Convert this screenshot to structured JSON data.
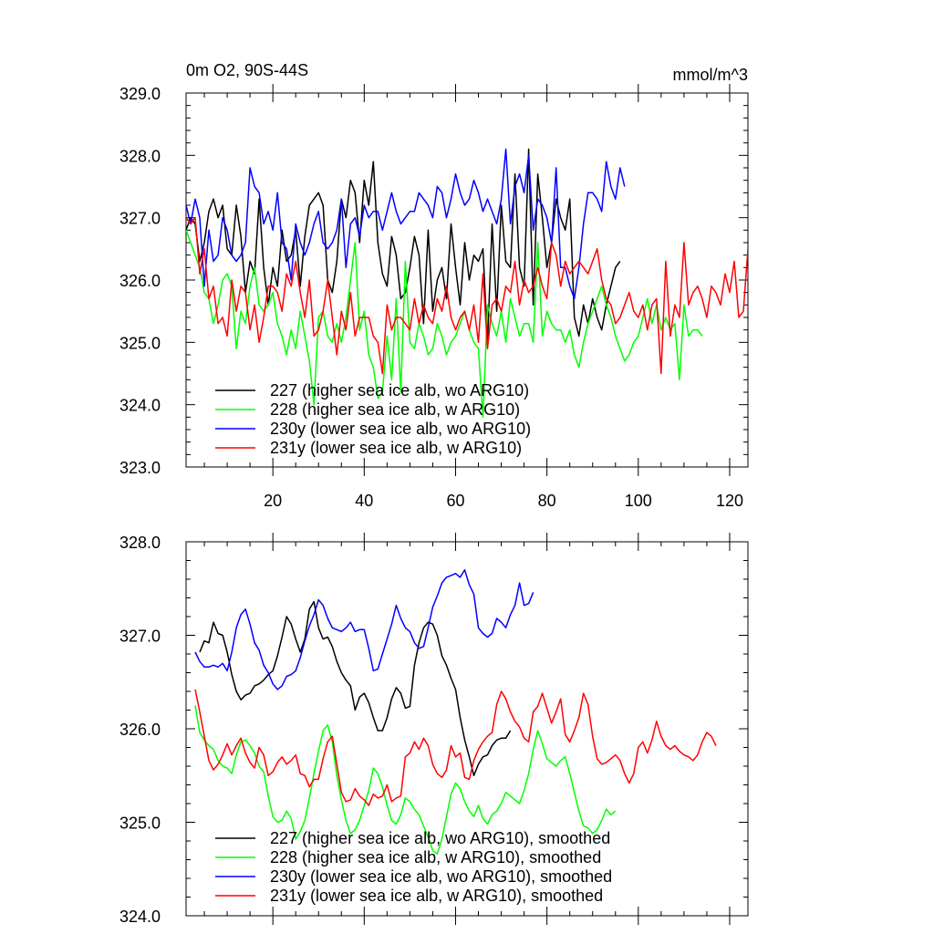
{
  "chart_data": [
    {
      "type": "line",
      "title": "0m O2, 90S-44S",
      "units": "mmol/m^3",
      "xlabel": "",
      "ylabel": "",
      "xlim": [
        1,
        124
      ],
      "ylim": [
        323.0,
        329.0
      ],
      "x_ticks": [
        20,
        40,
        60,
        80,
        100,
        120
      ],
      "x_tick_labels": [
        "20",
        "40",
        "60",
        "80",
        "100",
        "120"
      ],
      "y_ticks": [
        323.0,
        324.0,
        325.0,
        326.0,
        327.0,
        328.0,
        329.0
      ],
      "y_tick_labels": [
        "323.0",
        "324.0",
        "325.0",
        "326.0",
        "327.0",
        "328.0",
        "329.0"
      ],
      "legend_position": "bottom-left",
      "series": [
        {
          "name": "227 (higher sea ice alb, wo ARG10)",
          "color": "#000000",
          "x_start": 1,
          "values": [
            326.8,
            327.0,
            326.9,
            326.3,
            326.6,
            327.1,
            327.3,
            327.0,
            327.2,
            326.5,
            326.4,
            327.2,
            326.7,
            325.8,
            326.3,
            326.1,
            327.3,
            326.2,
            325.6,
            326.2,
            325.9,
            326.8,
            326.3,
            326.4,
            326.8,
            325.9,
            326.7,
            327.2,
            327.3,
            327.4,
            327.2,
            326.0,
            325.8,
            326.3,
            327.3,
            327.0,
            327.6,
            327.4,
            326.6,
            327.6,
            327.2,
            327.9,
            326.6,
            326.1,
            325.9,
            326.7,
            326.4,
            325.7,
            325.8,
            326.2,
            326.7,
            326.4,
            325.3,
            326.8,
            325.5,
            326.0,
            326.2,
            325.7,
            326.9,
            326.2,
            325.6,
            326.6,
            326.0,
            326.4,
            326.3,
            326.5,
            325.0,
            326.9,
            325.5,
            327.2,
            326.3,
            326.2,
            327.7,
            326.2,
            325.9,
            328.1,
            325.6,
            327.7,
            327.0,
            326.2,
            326.6,
            327.3,
            327.0,
            326.8,
            327.3,
            325.4,
            325.1,
            325.6,
            325.3,
            325.7,
            325.4,
            325.2,
            325.6,
            325.9,
            326.2,
            326.3
          ]
        },
        {
          "name": "228 (higher sea ice alb, w ARG10)",
          "color": "#00ff00",
          "x_start": 1,
          "values": [
            326.8,
            326.6,
            326.4,
            326.2,
            325.8,
            325.7,
            325.3,
            325.6,
            326.0,
            326.1,
            325.9,
            324.9,
            325.5,
            325.3,
            325.9,
            326.2,
            325.6,
            325.5,
            325.6,
            325.8,
            325.3,
            325.1,
            324.8,
            325.2,
            324.9,
            325.5,
            325.1,
            324.7,
            324.0,
            325.4,
            325.5,
            325.1,
            325.0,
            325.3,
            325.0,
            325.4,
            326.0,
            326.6,
            325.2,
            325.5,
            324.8,
            324.6,
            324.1,
            324.2,
            325.1,
            324.4,
            325.7,
            324.2,
            326.3,
            325.0,
            324.9,
            325.3,
            325.1,
            324.8,
            324.9,
            325.3,
            325.1,
            324.8,
            325.0,
            325.1,
            325.3,
            325.5,
            325.2,
            325.0,
            324.9,
            323.8,
            325.6,
            325.3,
            325.1,
            325.5,
            325.0,
            325.7,
            325.4,
            325.1,
            325.3,
            325.3,
            325.0,
            326.6,
            325.1,
            325.5,
            325.3,
            325.2,
            325.2,
            325.0,
            325.2,
            324.8,
            324.6,
            325.0,
            325.3,
            325.5,
            325.7,
            325.9,
            325.6,
            325.4,
            325.1,
            324.9,
            324.7,
            324.8,
            325.0,
            325.1,
            325.4,
            325.7,
            325.3,
            325.6,
            325.2,
            325.4,
            325.2,
            325.3,
            324.4,
            325.6,
            325.1,
            325.2,
            325.2,
            325.1
          ]
        },
        {
          "name": "230y (lower sea ice alb, wo ARG10)",
          "color": "#0000ff",
          "x_start": 1,
          "values": [
            327.2,
            326.9,
            327.3,
            327.0,
            325.9,
            326.8,
            326.3,
            326.4,
            327.0,
            326.8,
            326.4,
            326.3,
            326.4,
            326.6,
            327.8,
            327.5,
            327.4,
            326.9,
            327.1,
            326.8,
            327.4,
            326.6,
            326.5,
            326.0,
            326.9,
            326.6,
            326.4,
            326.6,
            326.9,
            327.1,
            326.6,
            326.5,
            326.6,
            326.8,
            327.3,
            326.2,
            326.9,
            327.0,
            326.7,
            327.2,
            327.0,
            327.1,
            327.1,
            326.8,
            327.1,
            327.4,
            327.1,
            326.9,
            327.0,
            327.1,
            327.1,
            327.4,
            327.3,
            327.2,
            327.0,
            327.5,
            327.4,
            327.0,
            327.3,
            327.7,
            327.4,
            327.2,
            327.3,
            327.6,
            327.4,
            327.1,
            327.3,
            327.1,
            326.9,
            327.3,
            328.1,
            326.9,
            327.5,
            327.7,
            327.4,
            328.0,
            326.8,
            327.3,
            327.2,
            327.0,
            326.6,
            327.8,
            326.2,
            326.2,
            325.9,
            325.7,
            326.2,
            326.9,
            327.4,
            327.4,
            327.3,
            327.1,
            327.9,
            327.5,
            327.3,
            327.8,
            327.5
          ]
        },
        {
          "name": "231y (lower sea ice alb, w ARG10)",
          "color": "#ff0000",
          "x_start": 1,
          "values": [
            327.0,
            326.9,
            327.0,
            326.1,
            326.5,
            325.7,
            325.9,
            325.3,
            325.4,
            325.1,
            326.0,
            325.5,
            325.9,
            325.8,
            325.2,
            325.6,
            325.0,
            325.4,
            325.9,
            325.9,
            325.8,
            325.5,
            326.1,
            325.9,
            326.3,
            325.8,
            325.4,
            326.0,
            325.1,
            325.2,
            325.5,
            326.0,
            325.4,
            324.8,
            325.5,
            325.2,
            325.8,
            325.1,
            325.4,
            325.4,
            325.4,
            325.1,
            325.0,
            324.5,
            325.6,
            325.2,
            325.4,
            325.4,
            325.3,
            325.2,
            325.7,
            325.3,
            325.6,
            325.4,
            325.3,
            325.7,
            325.5,
            325.9,
            325.4,
            325.2,
            325.4,
            325.5,
            325.2,
            325.6,
            325.0,
            326.1,
            324.9,
            325.6,
            325.7,
            325.5,
            325.9,
            325.8,
            326.3,
            325.6,
            326.0,
            325.8,
            325.9,
            326.2,
            325.9,
            325.7,
            326.6,
            326.4,
            325.9,
            326.3,
            326.1,
            326.2,
            326.3,
            326.2,
            326.1,
            326.3,
            326.5,
            326.0,
            325.7,
            325.6,
            325.3,
            325.4,
            325.6,
            325.8,
            325.5,
            325.4,
            325.6,
            325.2,
            325.6,
            325.7,
            324.5,
            326.3,
            325.1,
            325.6,
            325.4,
            326.6,
            325.6,
            325.8,
            325.9,
            325.7,
            325.4,
            325.9,
            325.8,
            325.6,
            326.1,
            325.8,
            326.3,
            325.4,
            325.5,
            326.5
          ]
        }
      ]
    },
    {
      "type": "line",
      "title": "",
      "xlabel": "",
      "ylabel": "",
      "xlim": [
        1,
        124
      ],
      "ylim": [
        324.0,
        328.0
      ],
      "x_ticks": [
        20,
        40,
        60,
        80,
        100,
        120
      ],
      "x_tick_labels": [],
      "y_ticks": [
        324.0,
        325.0,
        326.0,
        327.0,
        328.0
      ],
      "y_tick_labels": [
        "324.0",
        "325.0",
        "326.0",
        "327.0",
        "328.0"
      ],
      "legend_position": "bottom-left",
      "series": [
        {
          "name": "227 (higher sea ice alb, wo ARG10), smoothed",
          "color": "#000000",
          "x_start": 4,
          "values": [
            326.82,
            326.94,
            326.92,
            327.14,
            327.02,
            327.0,
            326.82,
            326.58,
            326.4,
            326.31,
            326.36,
            326.38,
            326.46,
            326.48,
            326.52,
            326.58,
            326.62,
            326.78,
            326.98,
            327.2,
            327.12,
            326.96,
            326.82,
            326.96,
            327.28,
            327.36,
            327.08,
            326.96,
            326.98,
            326.88,
            326.72,
            326.6,
            326.52,
            326.46,
            326.2,
            326.34,
            326.38,
            326.28,
            326.12,
            325.98,
            325.98,
            326.12,
            326.32,
            326.44,
            326.38,
            326.22,
            326.24,
            326.68,
            326.92,
            327.08,
            327.14,
            327.12,
            327.0,
            326.78,
            326.68,
            326.54,
            326.42,
            326.12,
            325.88,
            325.7,
            325.5,
            325.62,
            325.7,
            325.72,
            325.82,
            325.88,
            325.9,
            325.9,
            325.98
          ]
        },
        {
          "name": "228 (higher sea ice alb, w ARG10), smoothed",
          "color": "#00ff00",
          "x_start": 3,
          "values": [
            326.25,
            325.96,
            325.88,
            325.82,
            325.78,
            325.66,
            325.6,
            325.58,
            325.52,
            325.72,
            325.86,
            325.88,
            325.82,
            325.74,
            325.6,
            325.54,
            325.28,
            325.06,
            325.0,
            325.02,
            325.12,
            325.04,
            324.82,
            324.9,
            325.02,
            325.26,
            325.52,
            325.76,
            325.98,
            326.04,
            325.86,
            325.5,
            325.24,
            325.02,
            324.88,
            324.92,
            325.02,
            325.18,
            325.34,
            325.58,
            325.52,
            325.38,
            325.18,
            325.02,
            324.98,
            325.08,
            325.26,
            325.22,
            325.14,
            325.08,
            324.96,
            324.84,
            324.7,
            324.66,
            324.82,
            325.06,
            325.3,
            325.42,
            325.36,
            325.22,
            325.12,
            325.06,
            325.18,
            325.04,
            324.98,
            325.08,
            325.12,
            325.2,
            325.32,
            325.28,
            325.24,
            325.2,
            325.34,
            325.52,
            325.78,
            325.98,
            325.84,
            325.68,
            325.64,
            325.6,
            325.66,
            325.7,
            325.52,
            325.32,
            325.12,
            324.96,
            324.94,
            324.88,
            324.92,
            325.02,
            325.14,
            325.08,
            325.12
          ]
        },
        {
          "name": "230y (lower sea ice alb, wo ARG10), smoothed",
          "color": "#0000ff",
          "x_start": 3,
          "values": [
            326.82,
            326.72,
            326.66,
            326.66,
            326.68,
            326.66,
            326.7,
            326.62,
            326.82,
            327.08,
            327.22,
            327.28,
            327.12,
            326.92,
            326.84,
            326.68,
            326.6,
            326.48,
            326.42,
            326.46,
            326.56,
            326.58,
            326.62,
            326.76,
            326.94,
            327.1,
            327.22,
            327.38,
            327.32,
            327.18,
            327.08,
            327.06,
            327.04,
            327.08,
            327.14,
            327.04,
            327.06,
            327.06,
            326.86,
            326.62,
            326.64,
            326.8,
            326.96,
            327.12,
            327.32,
            327.18,
            327.08,
            327.04,
            326.92,
            326.86,
            326.88,
            327.08,
            327.3,
            327.42,
            327.56,
            327.62,
            327.64,
            327.66,
            327.62,
            327.7,
            327.54,
            327.44,
            327.08,
            327.02,
            326.98,
            327.02,
            327.18,
            327.14,
            327.08,
            327.22,
            327.32,
            327.56,
            327.32,
            327.34,
            327.46
          ]
        },
        {
          "name": "231y (lower sea ice alb, w ARG10), smoothed",
          "color": "#ff0000",
          "x_start": 3,
          "values": [
            326.42,
            326.18,
            325.92,
            325.66,
            325.56,
            325.62,
            325.72,
            325.84,
            325.72,
            325.82,
            325.9,
            325.74,
            325.64,
            325.58,
            325.8,
            325.72,
            325.5,
            325.54,
            325.64,
            325.7,
            325.62,
            325.66,
            325.72,
            325.52,
            325.5,
            325.38,
            325.46,
            325.46,
            325.68,
            325.86,
            325.92,
            325.62,
            325.32,
            325.22,
            325.24,
            325.36,
            325.28,
            325.24,
            325.18,
            325.3,
            325.26,
            325.28,
            325.4,
            325.22,
            325.26,
            325.28,
            325.7,
            325.74,
            325.86,
            325.78,
            325.9,
            325.82,
            325.62,
            325.52,
            325.48,
            325.56,
            325.82,
            325.7,
            325.74,
            325.48,
            325.46,
            325.66,
            325.78,
            325.86,
            325.92,
            325.96,
            326.26,
            326.4,
            326.32,
            326.18,
            326.08,
            326.02,
            325.9,
            325.86,
            326.18,
            326.24,
            326.38,
            326.22,
            326.06,
            326.18,
            326.32,
            325.94,
            325.86,
            325.98,
            326.12,
            326.38,
            326.26,
            325.92,
            325.68,
            325.62,
            325.64,
            325.68,
            325.72,
            325.66,
            325.52,
            325.42,
            325.52,
            325.8,
            325.86,
            325.74,
            325.88,
            326.08,
            325.92,
            325.82,
            325.78,
            325.82,
            325.76,
            325.72,
            325.7,
            325.66,
            325.72,
            325.86,
            325.96,
            325.92,
            325.82
          ]
        }
      ]
    }
  ]
}
